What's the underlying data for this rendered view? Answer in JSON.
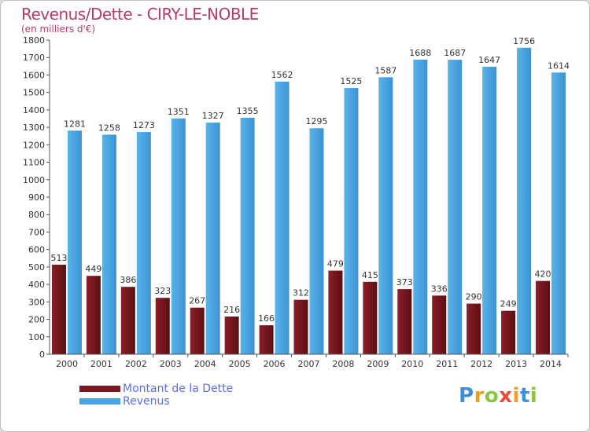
{
  "header": {
    "title": "Revenus/Dette - CIRY-LE-NOBLE",
    "subtitle": "(en milliers d'€)"
  },
  "chart_data": {
    "type": "bar",
    "categories": [
      "2000",
      "2001",
      "2002",
      "2003",
      "2004",
      "2005",
      "2006",
      "2007",
      "2008",
      "2009",
      "2010",
      "2011",
      "2012",
      "2013",
      "2014"
    ],
    "series": [
      {
        "name": "Montant de la Dette",
        "color": "#7a1a20",
        "values": [
          513,
          449,
          386,
          323,
          267,
          216,
          166,
          312,
          479,
          415,
          373,
          336,
          290,
          249,
          420
        ]
      },
      {
        "name": "Revenus",
        "color": "#4aa3e0",
        "values": [
          1281,
          1258,
          1273,
          1351,
          1327,
          1355,
          1562,
          1295,
          1525,
          1587,
          1688,
          1687,
          1647,
          1756,
          1614
        ]
      }
    ],
    "ylim": [
      0,
      1800
    ],
    "ytick_step": 100,
    "grid": false,
    "legend": "bottom-left"
  },
  "logo": {
    "letters": [
      "P",
      "r",
      "o",
      "x",
      "i",
      "t",
      "i"
    ],
    "colors": [
      "#3c8fd9",
      "#f0a021",
      "#8cc63f",
      "#e84c3d",
      "#f0a021",
      "#3c8fd9",
      "#8cc63f"
    ]
  }
}
